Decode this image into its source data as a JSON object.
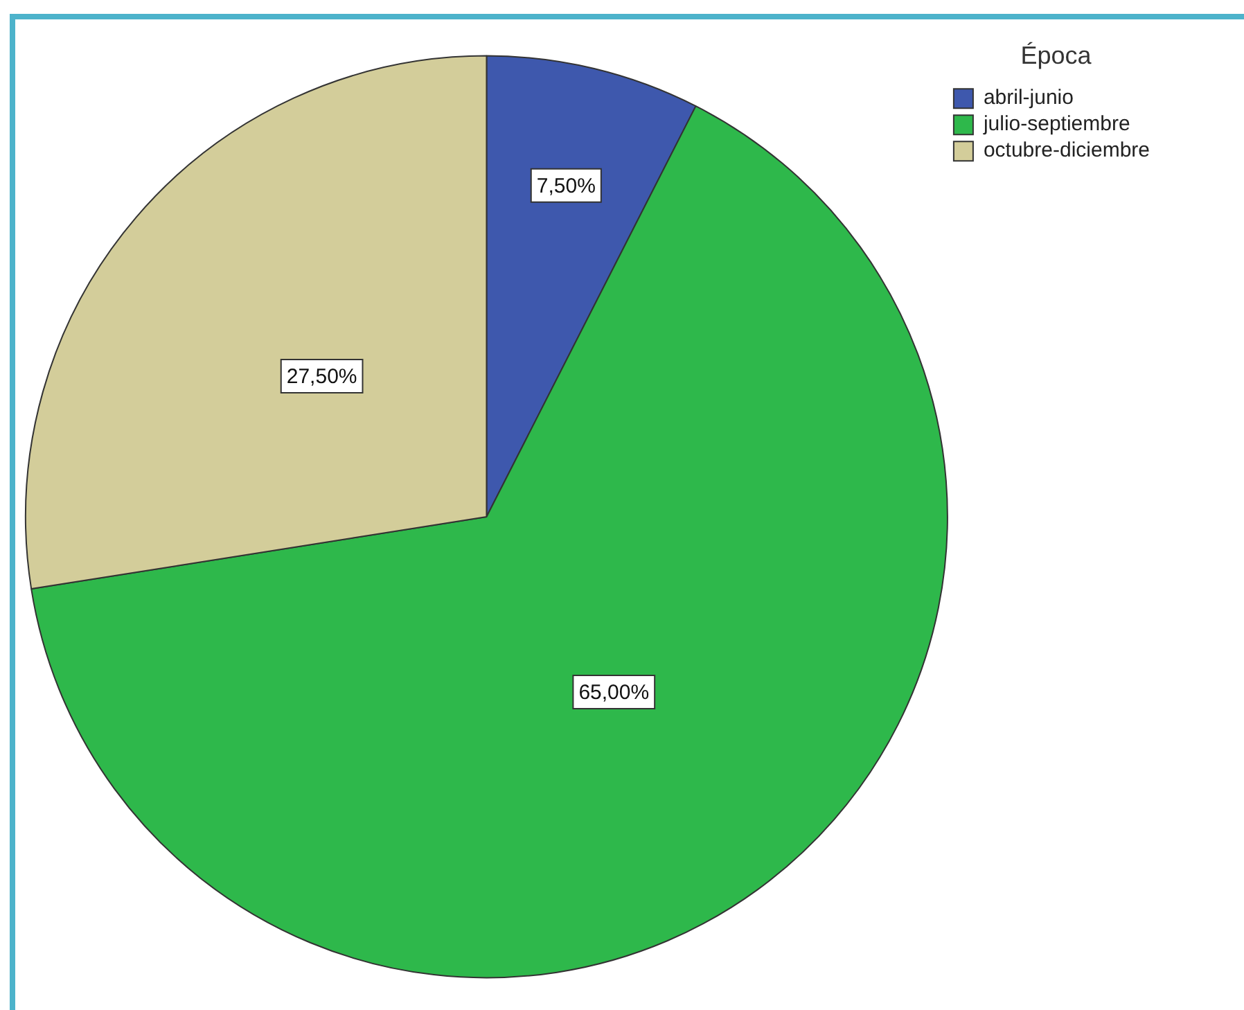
{
  "chart_data": {
    "type": "pie",
    "categories": [
      "abril-junio",
      "julio-septiembre",
      "octubre-diciembre"
    ],
    "values": [
      7.5,
      65,
      27.5
    ],
    "colors": [
      "#3e58ad",
      "#2eb84b",
      "#d3cd9a"
    ],
    "value_labels": [
      "7,50%",
      "65,00%",
      "27,50%"
    ],
    "legend": "top right",
    "legend_title": "Época"
  }
}
